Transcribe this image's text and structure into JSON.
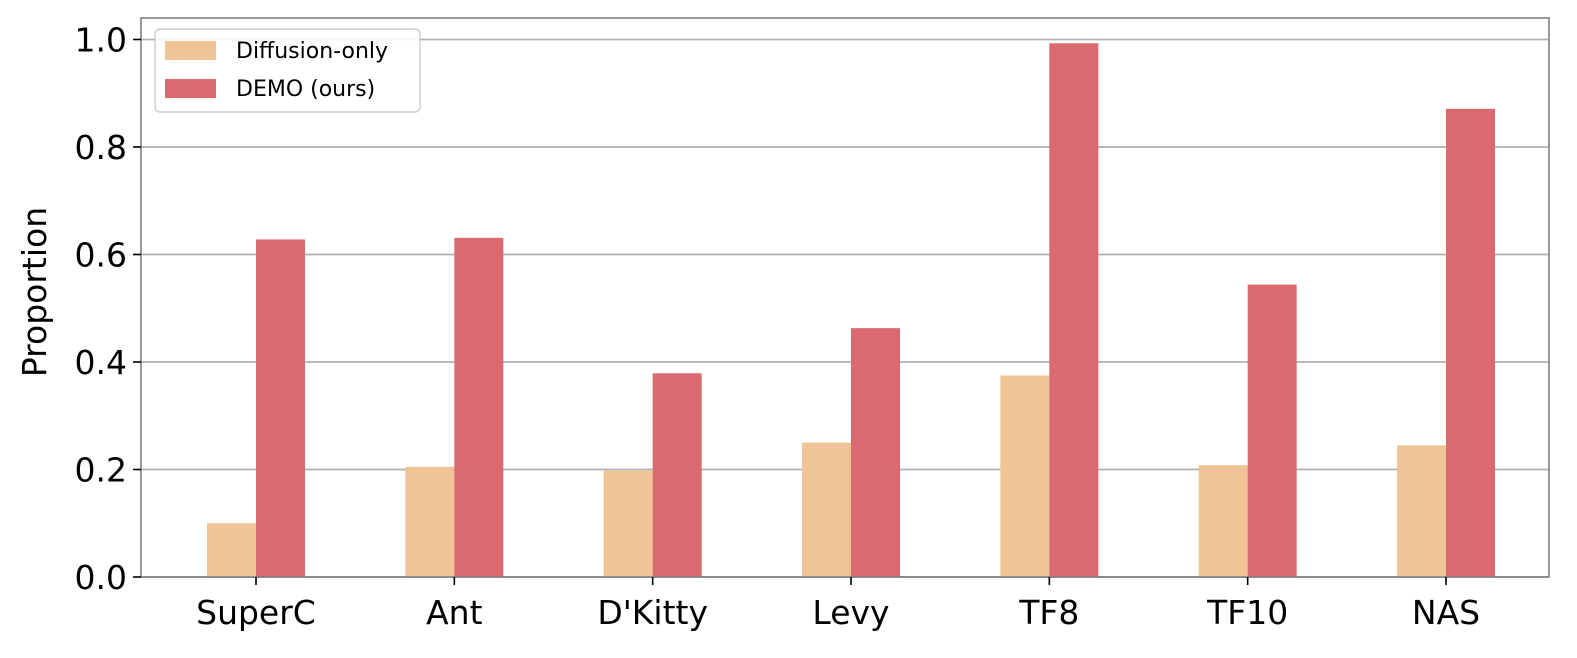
{
  "chart_data": {
    "type": "bar",
    "title": "",
    "xlabel": "",
    "ylabel": "Proportion",
    "ylim": [
      0,
      1.04
    ],
    "yticks": [
      "0.0",
      "0.2",
      "0.4",
      "0.6",
      "0.8",
      "1.0"
    ],
    "ytick_values": [
      0.0,
      0.2,
      0.4,
      0.6,
      0.8,
      1.0
    ],
    "grid": true,
    "legend_position": "top-left",
    "categories": [
      "SuperC",
      "Ant",
      "D'Kitty",
      "Levy",
      "TF8",
      "TF10",
      "NAS"
    ],
    "series": [
      {
        "name": "Diffusion-only",
        "color": "#f0c497",
        "values": [
          0.1,
          0.205,
          0.198,
          0.25,
          0.375,
          0.208,
          0.245
        ]
      },
      {
        "name": "DEMO (ours)",
        "color": "#da6a6f",
        "values": [
          0.628,
          0.631,
          0.379,
          0.463,
          0.993,
          0.544,
          0.871
        ]
      }
    ],
    "colors": {
      "grid": "#b0b0b0",
      "axis": "#7f7f7f",
      "legend_border": "#cccccc"
    }
  }
}
